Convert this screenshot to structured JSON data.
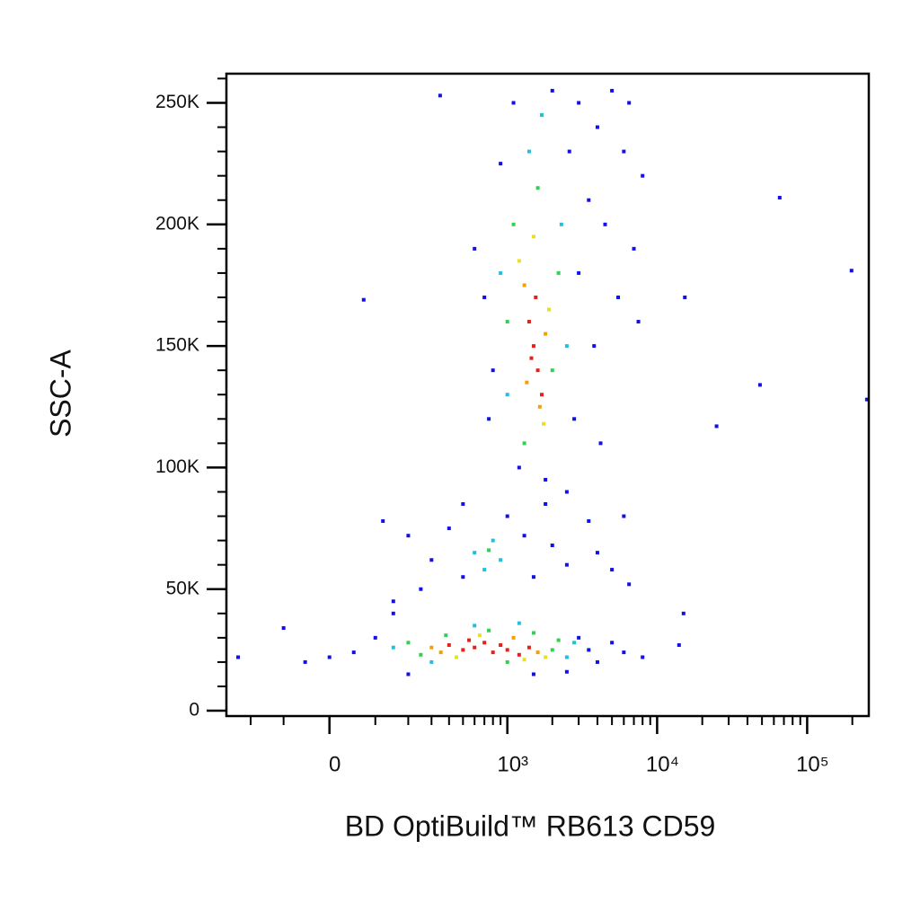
{
  "chart_data": {
    "type": "scatter",
    "xlabel": "BD OptiBuild™ RB613 CD59",
    "ylabel": "SSC-A",
    "xscale": "asinh",
    "xscale_width": 131,
    "xlim": [
      -305,
      257500
    ],
    "ylim": [
      -2200,
      262000
    ],
    "xticks": [
      0,
      {
        "value": 1000,
        "label": "10³"
      },
      {
        "value": 10000,
        "label": "10⁴"
      },
      {
        "value": 100000,
        "label": "10⁵"
      }
    ],
    "xminorticks": [
      -200,
      -100,
      100,
      200,
      300,
      400,
      500,
      600,
      700,
      800,
      900,
      2000,
      3000,
      4000,
      5000,
      6000,
      7000,
      8000,
      9000,
      20000,
      30000,
      40000,
      50000,
      60000,
      70000,
      80000,
      90000,
      200000
    ],
    "yticks": [
      0,
      {
        "value": 50000,
        "label": "50K"
      },
      {
        "value": 100000,
        "label": "100K"
      },
      {
        "value": 150000,
        "label": "150K"
      },
      {
        "value": 200000,
        "label": "200K"
      },
      {
        "value": 250000,
        "label": "250K"
      }
    ],
    "yminorticks": [
      10000,
      20000,
      30000,
      40000,
      60000,
      70000,
      80000,
      90000,
      110000,
      120000,
      130000,
      140000,
      160000,
      170000,
      180000,
      190000,
      210000,
      220000,
      230000,
      240000,
      260000
    ],
    "x": [
      400,
      500,
      600,
      700,
      800,
      1000,
      1200,
      1400,
      550,
      900,
      300,
      350,
      1100,
      1600,
      1800,
      450,
      650,
      1300,
      200,
      250,
      2000,
      2200,
      750,
      1000,
      380,
      1500,
      150,
      2500,
      2800,
      600,
      1200,
      300,
      50,
      100,
      0,
      -100,
      -50,
      3000,
      3500,
      4000,
      5000,
      6000,
      8000,
      15000,
      14000,
      150,
      200,
      1500,
      2500,
      -250,
      600,
      800,
      900,
      700,
      750,
      400,
      500,
      1000,
      1300,
      300,
      1500,
      2000,
      250,
      200,
      2500,
      4000,
      5000,
      3500,
      6000,
      6500,
      1800,
      500,
      150,
      120,
      1500,
      1600,
      1400,
      1700,
      1550,
      1450,
      1300,
      1800,
      1650,
      1350,
      1200,
      1900,
      1500,
      1750,
      1100,
      2000,
      1300,
      1600,
      2200,
      1000,
      1000,
      2300,
      1400,
      900,
      1700,
      2500,
      800,
      700,
      900,
      1100,
      2000,
      2800,
      3000,
      1200,
      1800,
      600,
      750,
      2600,
      3500,
      4000,
      5000,
      4500,
      6000,
      5500,
      7000,
      8000,
      3800,
      4200,
      3000,
      2500,
      7500,
      6500,
      72,
      65600,
      197600,
      48500,
      24900,
      15300,
      346,
      250000
    ],
    "values": [
      27000,
      25000,
      26000,
      28000,
      24000,
      25000,
      23000,
      26000,
      29000,
      27000,
      26000,
      24000,
      30000,
      24000,
      22000,
      22000,
      31000,
      21000,
      28000,
      23000,
      25000,
      29000,
      33000,
      20000,
      31000,
      32000,
      26000,
      22000,
      28000,
      35000,
      36000,
      20000,
      24000,
      30000,
      22000,
      34000,
      20000,
      30000,
      25000,
      20000,
      28000,
      24000,
      22000,
      40000,
      27000,
      40000,
      15000,
      15000,
      16000,
      22000,
      65000,
      70000,
      62000,
      58000,
      66000,
      75000,
      55000,
      80000,
      72000,
      62000,
      55000,
      68000,
      50000,
      72000,
      60000,
      65000,
      58000,
      78000,
      80000,
      52000,
      85000,
      85000,
      45000,
      78000,
      150000,
      140000,
      160000,
      130000,
      170000,
      145000,
      175000,
      155000,
      125000,
      135000,
      185000,
      165000,
      195000,
      118000,
      200000,
      140000,
      110000,
      215000,
      180000,
      160000,
      130000,
      200000,
      230000,
      180000,
      245000,
      150000,
      140000,
      170000,
      225000,
      250000,
      255000,
      120000,
      180000,
      100000,
      95000,
      190000,
      120000,
      230000,
      210000,
      240000,
      255000,
      200000,
      230000,
      170000,
      190000,
      220000,
      150000,
      110000,
      250000,
      90000,
      160000,
      250000,
      169000,
      211000,
      181000,
      134000,
      117000,
      170000,
      253000,
      128000
    ],
    "point_colors": [
      "#e8201a",
      "#e8201a",
      "#e8201a",
      "#e8201a",
      "#e8201a",
      "#e8201a",
      "#e8201a",
      "#e8201a",
      "#e8201a",
      "#e8201a",
      "#f5a000",
      "#f5a000",
      "#f5a000",
      "#f5a000",
      "#e8e020",
      "#e8e020",
      "#e8e020",
      "#e8e020",
      "#30d050",
      "#30d050",
      "#30d050",
      "#30d050",
      "#30d050",
      "#30d050",
      "#30d050",
      "#30d050",
      "#20c0e0",
      "#20c0e0",
      "#20c0e0",
      "#20c0e0",
      "#20c0e0",
      "#20c0e0",
      "#1010e8",
      "#1010e8",
      "#1010e8",
      "#1010e8",
      "#1010e8",
      "#1010e8",
      "#1010e8",
      "#1010e8",
      "#1010e8",
      "#1010e8",
      "#1010e8",
      "#1010e8",
      "#1010e8",
      "#1010e8",
      "#1010e8",
      "#1010e8",
      "#1010e8",
      "#1010e8",
      "#20c0e0",
      "#20c0e0",
      "#20c0e0",
      "#20c0e0",
      "#30d050",
      "#1010e8",
      "#1010e8",
      "#1010e8",
      "#1010e8",
      "#1010e8",
      "#1010e8",
      "#1010e8",
      "#1010e8",
      "#1010e8",
      "#1010e8",
      "#1010e8",
      "#1010e8",
      "#1010e8",
      "#1010e8",
      "#1010e8",
      "#1010e8",
      "#1010e8",
      "#1010e8",
      "#1010e8",
      "#e8201a",
      "#e8201a",
      "#e8201a",
      "#e8201a",
      "#e8201a",
      "#e8201a",
      "#f5a000",
      "#f5a000",
      "#f5a000",
      "#f5a000",
      "#e8e020",
      "#e8e020",
      "#e8e020",
      "#e8e020",
      "#30d050",
      "#30d050",
      "#30d050",
      "#30d050",
      "#30d050",
      "#30d050",
      "#20c0e0",
      "#20c0e0",
      "#20c0e0",
      "#20c0e0",
      "#20c0e0",
      "#20c0e0",
      "#1010e8",
      "#1010e8",
      "#1010e8",
      "#1010e8",
      "#1010e8",
      "#1010e8",
      "#1010e8",
      "#1010e8",
      "#1010e8",
      "#1010e8",
      "#1010e8",
      "#1010e8",
      "#1010e8",
      "#1010e8",
      "#1010e8",
      "#1010e8",
      "#1010e8",
      "#1010e8",
      "#1010e8",
      "#1010e8",
      "#1010e8",
      "#1010e8",
      "#1010e8",
      "#1010e8",
      "#1010e8",
      "#1010e8",
      "#1010e8",
      "#1010e8",
      "#1010e8",
      "#1010e8",
      "#1010e8",
      "#1010e8",
      "#1010e8",
      "#1010e8"
    ]
  }
}
